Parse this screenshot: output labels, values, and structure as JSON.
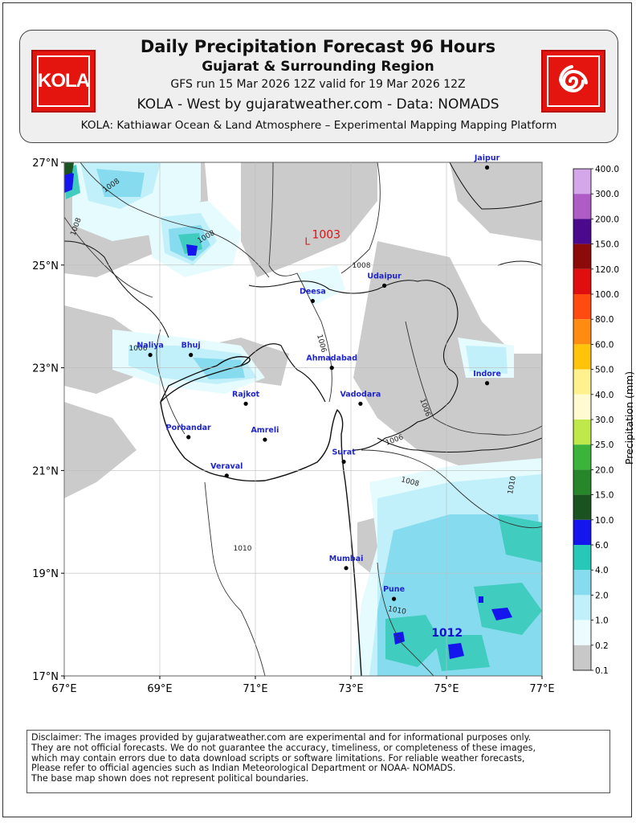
{
  "header": {
    "title": "Daily Precipitation Forecast 96 Hours",
    "subtitle": "Gujarat & Surrounding Region",
    "run_info": "GFS run 15 Mar 2026 12Z valid for 19 Mar 2026 12Z",
    "source_line": "KOLA - West by gujaratweather.com - Data: NOMADS",
    "platform_line": "KOLA: Kathiawar Ocean & Land Atmosphere – Experimental Mapping Mapping Platform",
    "logo_left_text": "KOLA",
    "logo_right_icon": "cyclone-icon"
  },
  "map": {
    "lat_range": [
      17,
      27
    ],
    "lon_range": [
      67,
      77
    ],
    "lat_ticks": [
      "27°N",
      "25°N",
      "23°N",
      "21°N",
      "19°N",
      "17°N"
    ],
    "lon_ticks": [
      "67°E",
      "69°E",
      "71°E",
      "73°E",
      "75°E",
      "77°E"
    ],
    "cities": [
      {
        "name": "Jaipur",
        "lon": 75.85,
        "lat": 26.9
      },
      {
        "name": "Udaipur",
        "lon": 73.7,
        "lat": 24.6
      },
      {
        "name": "Deesa",
        "lon": 72.2,
        "lat": 24.3
      },
      {
        "name": "Naliya",
        "lon": 68.8,
        "lat": 23.25
      },
      {
        "name": "Bhuj",
        "lon": 69.65,
        "lat": 23.25
      },
      {
        "name": "Ahmadabad",
        "lon": 72.6,
        "lat": 23.0
      },
      {
        "name": "Indore",
        "lon": 75.85,
        "lat": 22.7
      },
      {
        "name": "Rajkot",
        "lon": 70.8,
        "lat": 22.3
      },
      {
        "name": "Vadodara",
        "lon": 73.2,
        "lat": 22.3
      },
      {
        "name": "Porbandar",
        "lon": 69.6,
        "lat": 21.65
      },
      {
        "name": "Amreli",
        "lon": 71.2,
        "lat": 21.6
      },
      {
        "name": "Surat",
        "lon": 72.85,
        "lat": 21.17
      },
      {
        "name": "Veraval",
        "lon": 70.4,
        "lat": 20.9
      },
      {
        "name": "Mumbai",
        "lon": 72.9,
        "lat": 19.1
      },
      {
        "name": "Pune",
        "lon": 73.9,
        "lat": 18.5
      }
    ],
    "isobar_labels": [
      "1008",
      "1008",
      "1008",
      "1008",
      "1006",
      "1006",
      "1006",
      "1006",
      "1008",
      "1010",
      "1010",
      "1010"
    ],
    "pressure_centers": [
      {
        "value": "1003",
        "color": "#e01010",
        "lon": 72.1,
        "lat": 25.55
      },
      {
        "value": "1012",
        "color": "#1010d0",
        "lon": 74.6,
        "lat": 17.8
      }
    ]
  },
  "colorbar": {
    "label": "Precipitation (mm)",
    "levels": [
      "400.0",
      "300.0",
      "200.0",
      "150.0",
      "120.0",
      "100.0",
      "80.0",
      "60.0",
      "50.0",
      "40.0",
      "30.0",
      "25.0",
      "20.0",
      "15.0",
      "10.0",
      "6.0",
      "4.0",
      "2.0",
      "1.0",
      "0.2",
      "0.1"
    ],
    "colors": [
      "#e8d4f6",
      "#d4a6ea",
      "#b05cc6",
      "#4b0a8e",
      "#8c0a0a",
      "#e00e0e",
      "#ff4a10",
      "#ff8c10",
      "#ffc40a",
      "#fff28e",
      "#fffad2",
      "#bfe84a",
      "#3cb43c",
      "#28862a",
      "#1a5220",
      "#1515ee",
      "#28c8b8",
      "#86dcee",
      "#c2f0fa",
      "#ecfcfe",
      "#c8c8c8",
      "#ececec"
    ]
  },
  "disclaimer": {
    "lines": [
      "Disclaimer: The images provided by gujaratweather.com are experimental and for informational purposes only.",
      "They are not official forecasts. We do not guarantee the accuracy, timeliness, or completeness of these images,",
      "which may contain errors due to data download scripts or software limitations. For reliable weather forecasts,",
      "Please refer to official agencies such as Indian Meteorological Department or NOAA- NOMADS.",
      "The base map shown does not represent political boundaries."
    ]
  }
}
